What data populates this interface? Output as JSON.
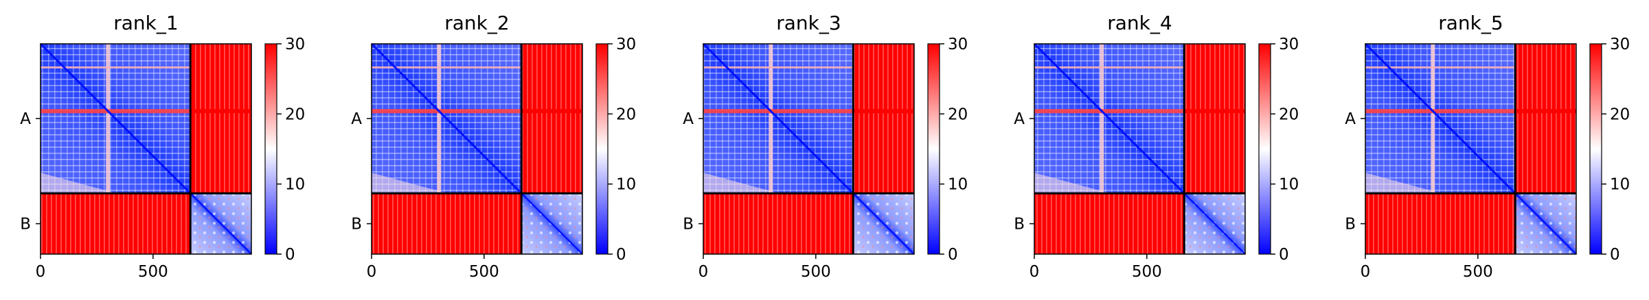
{
  "chart_data": {
    "type": "heatmap",
    "colormap": {
      "name": "bwr",
      "low_color": "#0000ff",
      "mid_color": "#ffffff",
      "high_color": "#ff0000",
      "vmin": 0,
      "vmax": 30,
      "ticks": [
        "0",
        "10",
        "20",
        "30"
      ]
    },
    "x_axis": {
      "range": [
        0,
        937
      ],
      "ticks": [
        0,
        500
      ],
      "tick_labels": [
        "0",
        "500"
      ]
    },
    "y_axis": {
      "tick_labels": [
        "A",
        "B"
      ]
    },
    "chains": [
      {
        "name": "A",
        "start": 0,
        "end": 666
      },
      {
        "name": "B",
        "start": 666,
        "end": 937
      }
    ],
    "grid": false,
    "panels": [
      {
        "title": "rank_1"
      },
      {
        "title": "rank_2"
      },
      {
        "title": "rank_3"
      },
      {
        "title": "rank_4"
      },
      {
        "title": "rank_5"
      }
    ]
  }
}
